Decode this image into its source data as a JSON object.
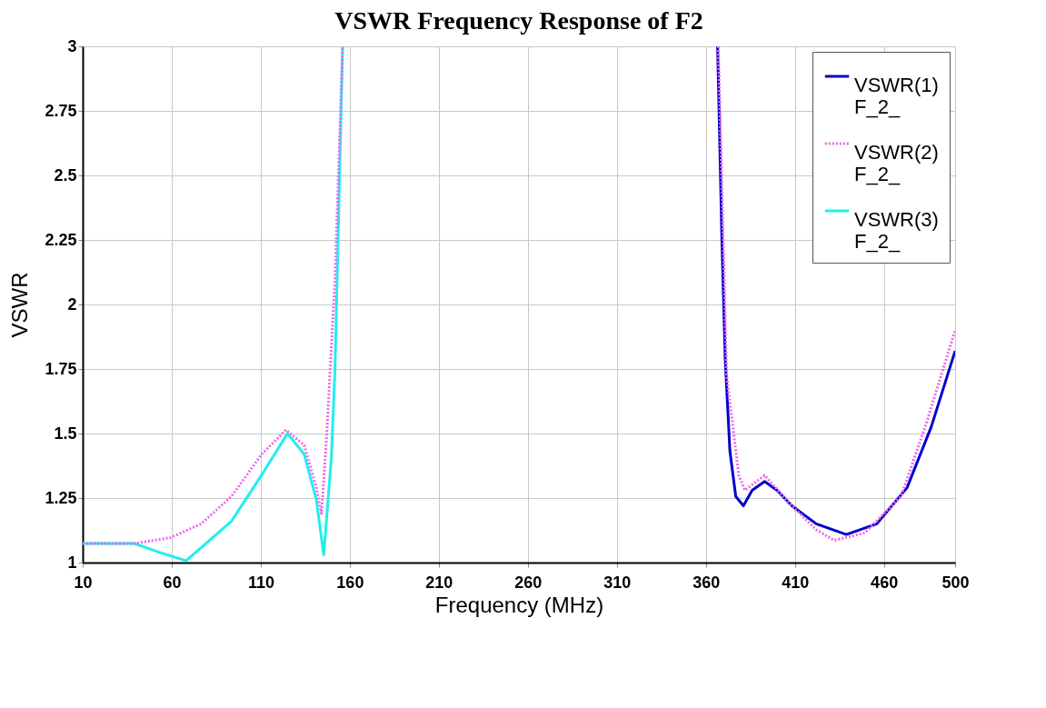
{
  "chart_data": {
    "type": "line",
    "title": "VSWR Frequency Response of F2",
    "xlabel": "Frequency (MHz)",
    "ylabel": "VSWR",
    "xlim": [
      10,
      500
    ],
    "xticks": [
      10,
      60,
      110,
      160,
      210,
      260,
      310,
      360,
      410,
      460,
      500
    ],
    "ylim": [
      1,
      3
    ],
    "yticks": [
      1,
      1.25,
      1.5,
      1.75,
      2,
      2.25,
      2.5,
      2.75,
      3
    ],
    "grid": true,
    "legend": "top right",
    "marker": "none",
    "series": [
      {
        "name": "VSWR(1) F_2_",
        "color": "#0000cc",
        "line_style": "solid",
        "x": [
          366.6,
          369,
          370.9,
          373.5,
          376.8,
          381.1,
          386,
          393,
          400,
          408.3,
          422,
          438.9,
          456,
          473,
          486.6,
          500
        ],
        "values": [
          3,
          2.254,
          1.784,
          1.432,
          1.256,
          1.22,
          1.28,
          1.314,
          1.28,
          1.22,
          1.15,
          1.109,
          1.15,
          1.29,
          1.526,
          1.82
        ]
      },
      {
        "name": "VSWR(2) F_2_",
        "color": "#ee66ee",
        "line_style": "dotted",
        "x": [
          10,
          39,
          59.5,
          76.5,
          93.5,
          110.6,
          124.2,
          134.4,
          141.2,
          144.1,
          147.1,
          151.7,
          156,
          null,
          367,
          371.7,
          378.5,
          381.9,
          393,
          408.3,
          422,
          432.2,
          449.2,
          469.6,
          483.2,
          500
        ],
        "values": [
          1.074,
          1.074,
          1.097,
          1.15,
          1.256,
          1.42,
          1.514,
          1.455,
          1.29,
          1.19,
          1.5,
          2.1,
          3,
          null,
          3,
          1.725,
          1.338,
          1.28,
          1.338,
          1.22,
          1.127,
          1.086,
          1.115,
          1.256,
          1.526,
          1.9
        ]
      },
      {
        "name": "VSWR(3) F_2_",
        "color": "#22eeee",
        "line_style": "solid",
        "x": [
          10,
          39,
          53,
          68,
          93.5,
          110.6,
          125,
          134.4,
          141.2,
          145.4,
          149.7,
          151.7,
          156
        ],
        "values": [
          1.074,
          1.074,
          1.04,
          1.007,
          1.16,
          1.34,
          1.5,
          1.42,
          1.244,
          1.03,
          1.41,
          1.75,
          3
        ]
      }
    ]
  }
}
